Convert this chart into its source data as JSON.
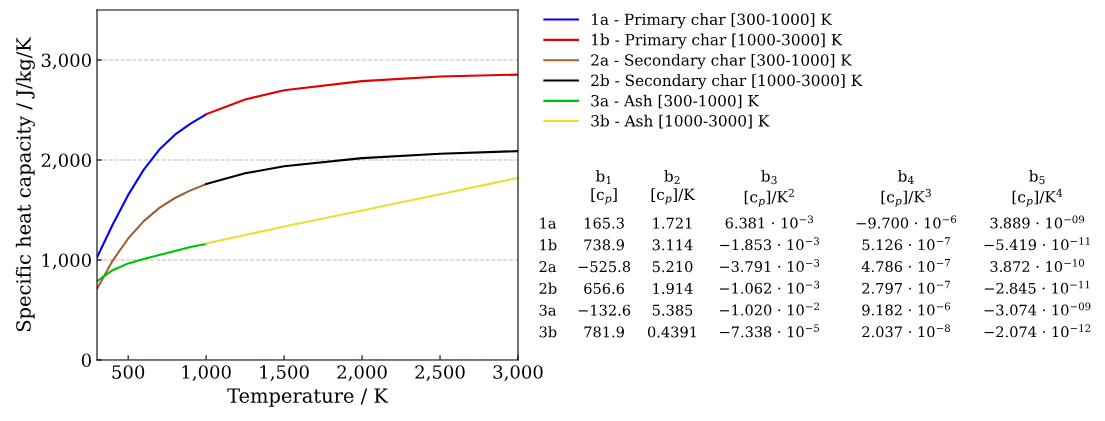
{
  "chart_data": [
    {
      "type": "line",
      "xlabel": "Temperature / K",
      "ylabel": "Specific heat capacity / J/kg/K",
      "xlim": [
        300,
        3000
      ],
      "ylim": [
        0,
        3500
      ],
      "xticks": [
        500,
        {
          "value": 1000,
          "label": "1,000"
        },
        {
          "value": 1500,
          "label": "1,500"
        },
        {
          "value": 2000,
          "label": "2,000"
        },
        {
          "value": 2500,
          "label": "2,500"
        },
        {
          "value": 3000,
          "label": "3,000"
        }
      ],
      "yticks": [
        0,
        {
          "value": 1000,
          "label": "1,000"
        },
        {
          "value": 2000,
          "label": "2,000"
        },
        {
          "value": 3000,
          "label": "3,000"
        }
      ],
      "grid": "y",
      "legend": "top right",
      "marker": "none",
      "line_style": "solid",
      "series": [
        {
          "name": "1a - Primary char [300-1000] K",
          "color": "#0000ff",
          "x": [
            300,
            400,
            500,
            600,
            700,
            800,
            900,
            1000
          ],
          "values": [
            1026,
            1353,
            1651,
            1904,
            2104,
            2253,
            2364,
            2456
          ]
        },
        {
          "name": "1b - Primary char [1000-3000] K",
          "color": "#e00000",
          "x": [
            1000,
            1250,
            1500,
            2000,
            2500,
            3000
          ],
          "values": [
            2458,
            2605,
            2697,
            2789,
            2835,
            2854
          ]
        },
        {
          "name": "2a - Secondary char [300-1000] K",
          "color": "#a0602d",
          "x": [
            300,
            400,
            500,
            600,
            700,
            800,
            900,
            1000
          ],
          "values": [
            712,
            992,
            1215,
            1389,
            1521,
            1620,
            1696,
            1759
          ]
        },
        {
          "name": "2b - Secondary char [1000-3000] K",
          "color": "#000000",
          "x": [
            1000,
            1250,
            1500,
            2000,
            2500,
            3000
          ],
          "values": [
            1760,
            1867,
            1938,
            2019,
            2063,
            2089
          ]
        },
        {
          "name": "3a - Ash [300-1000] K",
          "color": "#00c000",
          "x": [
            300,
            400,
            500,
            600,
            700,
            800,
            900,
            1000
          ],
          "values": [
            788,
            898,
            966,
            1011,
            1050,
            1089,
            1129,
            1160
          ]
        },
        {
          "name": "3b - Ash [1000-3000] K",
          "color": "#e8e030",
          "x": [
            1000,
            1500,
            2000,
            2500,
            3000
          ],
          "values": [
            1166,
            1334,
            1496,
            1658,
            1821
          ]
        }
      ]
    },
    {
      "type": "other",
      "annotations": [
        "b$_{1}$\n[c$_{p}$]",
        "b$_{2}$\n[c$_{p}$]/K",
        "b$_{3}$\n[c$_{p}$]/K$^{2}$",
        "b$_{4}$\n[c$_{p}$]/K$^{3}$",
        "b$_{5}$\n[c$_{p}$]/K$^{4}$",
        "1a",
        "165.3",
        "1.721",
        "6.381 · 10$^{−3}$",
        "−9.700 · 10$^{−6}$",
        "3.889 · 10$^{−09}$",
        "1b",
        "738.9",
        "3.114",
        "−1.853 · 10$^{−3}$",
        "5.126 · 10$^{−7}$",
        "−5.419 · 10$^{−11}$",
        "2a",
        "−525.8",
        "5.210",
        "−3.791 · 10$^{−3}$",
        "4.786 · 10$^{−7}$",
        "3.872 · 10$^{−10}$",
        "2b",
        "656.6",
        "1.914",
        "−1.062 · 10$^{−3}$",
        "2.797 · 10$^{−7}$",
        "−2.845 · 10$^{−11}$",
        "3a",
        "−132.6",
        "5.385",
        "−1.020 · 10$^{−2}$",
        "9.182 · 10$^{−6}$",
        "−3.074 · 10$^{−09}$",
        "3b",
        "781.9",
        "0.4391",
        "−7.338 · 10$^{−5}$",
        "2.037 · 10$^{−8}$",
        "−2.074 · 10$^{−12}$"
      ]
    }
  ]
}
